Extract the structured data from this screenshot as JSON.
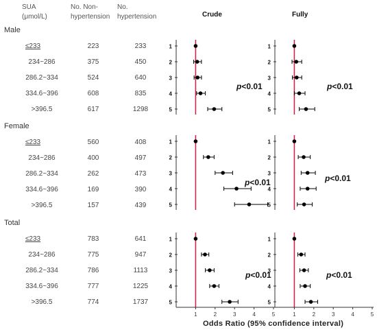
{
  "headers": {
    "sua": [
      "SUA",
      "(μmol/L)"
    ],
    "non_hyp": [
      "No. Non-",
      "hypertension"
    ],
    "hyp": [
      "No.",
      "hypertension"
    ]
  },
  "panel_titles": {
    "crude": "Crude",
    "fully": "Fully"
  },
  "xlabel": "Odds Ratio (95% confidence interval)",
  "groups": [
    {
      "name": "Male",
      "rows": [
        {
          "sua": "≤233",
          "non_hyp": "223",
          "hyp": "233"
        },
        {
          "sua": "234~286",
          "non_hyp": "375",
          "hyp": "450"
        },
        {
          "sua": "286.2~334",
          "non_hyp": "524",
          "hyp": "640"
        },
        {
          "sua": "334.6~396",
          "non_hyp": "608",
          "hyp": "835"
        },
        {
          "sua": ">396.5",
          "non_hyp": "617",
          "hyp": "1298"
        }
      ]
    },
    {
      "name": "Female",
      "rows": [
        {
          "sua": "≤233",
          "non_hyp": "560",
          "hyp": "408"
        },
        {
          "sua": "234~286",
          "non_hyp": "400",
          "hyp": "497"
        },
        {
          "sua": "286.2~334",
          "non_hyp": "262",
          "hyp": "473"
        },
        {
          "sua": "334.6~396",
          "non_hyp": "169",
          "hyp": "390"
        },
        {
          "sua": ">396.5",
          "non_hyp": "157",
          "hyp": "439"
        }
      ]
    },
    {
      "name": "Total",
      "rows": [
        {
          "sua": "≤233",
          "non_hyp": "783",
          "hyp": "641"
        },
        {
          "sua": "234~286",
          "non_hyp": "775",
          "hyp": "947"
        },
        {
          "sua": "286.2~334",
          "non_hyp": "786",
          "hyp": "1113"
        },
        {
          "sua": "334.6~396",
          "non_hyp": "777",
          "hyp": "1225"
        },
        {
          "sua": ">396.5",
          "non_hyp": "774",
          "hyp": "1737"
        }
      ]
    }
  ],
  "chart_data": [
    {
      "type": "forest",
      "group": "Male",
      "model": "Crude",
      "labels": [
        "1",
        "2",
        "3",
        "4",
        "5"
      ],
      "or": [
        1.0,
        1.08,
        1.1,
        1.25,
        1.95
      ],
      "ci_low": [
        1.0,
        0.9,
        0.92,
        1.05,
        1.62
      ],
      "ci_high": [
        1.0,
        1.3,
        1.3,
        1.5,
        2.35
      ],
      "annotation": "p<0.01",
      "xlim": [
        0,
        5
      ],
      "reference_line": 1,
      "colors": {
        "reference": "#c8284a",
        "marker": "#000000"
      }
    },
    {
      "type": "forest",
      "group": "Male",
      "model": "Fully",
      "labels": [
        "1",
        "2",
        "3",
        "4",
        "5"
      ],
      "or": [
        1.0,
        1.1,
        1.12,
        1.25,
        1.6
      ],
      "ci_low": [
        1.0,
        0.88,
        0.9,
        1.0,
        1.25
      ],
      "ci_high": [
        1.0,
        1.38,
        1.38,
        1.55,
        2.05
      ],
      "annotation": "p<0.01",
      "xlim": [
        0,
        5
      ],
      "reference_line": 1,
      "colors": {
        "reference": "#c8284a",
        "marker": "#000000"
      }
    },
    {
      "type": "forest",
      "group": "Female",
      "model": "Crude",
      "labels": [
        "1",
        "2",
        "3",
        "4",
        "5"
      ],
      "or": [
        1.0,
        1.65,
        2.4,
        3.1,
        3.75
      ],
      "ci_low": [
        1.0,
        1.4,
        2.0,
        2.45,
        3.0
      ],
      "ci_high": [
        1.0,
        1.95,
        2.9,
        3.85,
        4.7
      ],
      "annotation": "p<0.01",
      "xlim": [
        0,
        5
      ],
      "reference_line": 1,
      "colors": {
        "reference": "#c8284a",
        "marker": "#000000"
      }
    },
    {
      "type": "forest",
      "group": "Female",
      "model": "Fully",
      "labels": [
        "1",
        "2",
        "3",
        "4",
        "5"
      ],
      "or": [
        1.0,
        1.48,
        1.68,
        1.68,
        1.5
      ],
      "ci_low": [
        1.0,
        1.2,
        1.35,
        1.3,
        1.15
      ],
      "ci_high": [
        1.0,
        1.82,
        2.08,
        2.12,
        1.92
      ],
      "annotation": "p<0.01",
      "xlim": [
        0,
        5
      ],
      "reference_line": 1,
      "colors": {
        "reference": "#c8284a",
        "marker": "#000000"
      }
    },
    {
      "type": "forest",
      "group": "Total",
      "model": "Crude",
      "labels": [
        "1",
        "2",
        "3",
        "4",
        "5"
      ],
      "or": [
        1.0,
        1.48,
        1.72,
        1.95,
        2.75
      ],
      "ci_low": [
        1.0,
        1.3,
        1.5,
        1.72,
        2.35
      ],
      "ci_high": [
        1.0,
        1.68,
        1.95,
        2.2,
        3.18
      ],
      "annotation": "p<0.01",
      "xlim": [
        0,
        5
      ],
      "reference_line": 1,
      "colors": {
        "reference": "#c8284a",
        "marker": "#000000"
      }
    },
    {
      "type": "forest",
      "group": "Total",
      "model": "Fully",
      "labels": [
        "1",
        "2",
        "3",
        "4",
        "5"
      ],
      "or": [
        1.0,
        1.35,
        1.5,
        1.55,
        1.85
      ],
      "ci_low": [
        1.0,
        1.18,
        1.28,
        1.3,
        1.55
      ],
      "ci_high": [
        1.0,
        1.55,
        1.72,
        1.82,
        2.2
      ],
      "annotation": "p<0.01",
      "xlim": [
        0,
        5
      ],
      "reference_line": 1,
      "colors": {
        "reference": "#c8284a",
        "marker": "#000000"
      }
    }
  ]
}
